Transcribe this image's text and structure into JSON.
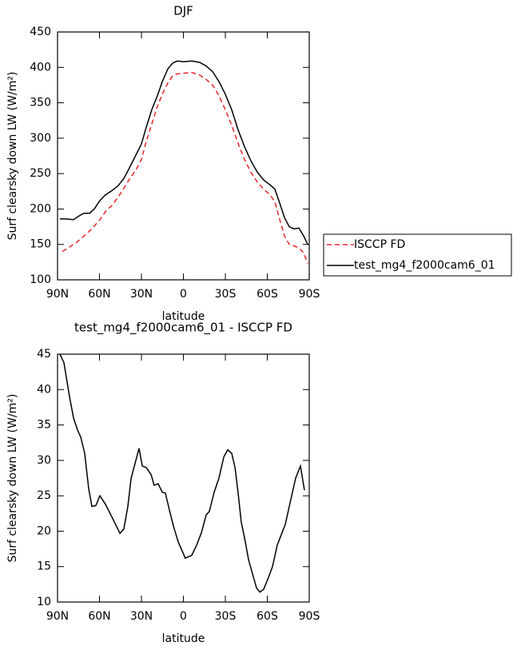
{
  "chart_data": [
    {
      "type": "line",
      "title": "DJF",
      "ylabel": "Surf clearsky down LW (W/m²)",
      "xlabel": "latitude",
      "xlim": [
        90,
        -90
      ],
      "xticks": [
        {
          "value": 90,
          "label": "90N"
        },
        {
          "value": 60,
          "label": "60N"
        },
        {
          "value": 30,
          "label": "30N"
        },
        0,
        {
          "value": -30,
          "label": "30S"
        },
        {
          "value": -60,
          "label": "60S"
        },
        {
          "value": -90,
          "label": "90S"
        }
      ],
      "ylim": [
        100,
        450
      ],
      "yticks": [
        100,
        150,
        200,
        250,
        300,
        350,
        400,
        450
      ],
      "legend": "right",
      "series": [
        {
          "name": "ISCCP FD",
          "color": "#e8262a",
          "linestyle": "dashed",
          "x": [
            86.6,
            82.6,
            76.9,
            71.1,
            65.4,
            59.7,
            55.1,
            51.1,
            46.6,
            42.6,
            38.6,
            34,
            30,
            26.6,
            22.6,
            18.6,
            15.1,
            11.1,
            7.7,
            4.3,
            -1.4,
            -6,
            -11.7,
            -16.3,
            -20.9,
            -25.4,
            -30,
            -34.6,
            -39.1,
            -43.7,
            -48.3,
            -52.9,
            -57.4,
            -62,
            -65.4,
            -68.9,
            -72.3,
            -75.7,
            -79.1,
            -82.6,
            -86,
            -88.9
          ],
          "values": [
            140,
            145,
            152,
            162,
            172,
            185,
            198,
            205,
            217,
            229,
            242,
            255,
            270,
            295,
            320,
            345,
            362,
            378,
            388,
            391,
            392,
            393,
            389,
            383,
            375,
            360,
            340,
            318,
            293,
            270,
            252,
            238,
            228,
            220,
            210,
            185,
            162,
            150,
            148,
            145,
            138,
            123
          ]
        },
        {
          "name": "test_mg4_f2000cam6_01",
          "color": "#000000",
          "linestyle": "solid",
          "x": [
            88.3,
            84.3,
            78.6,
            74,
            71.1,
            67.1,
            63.7,
            59.7,
            55.7,
            51.1,
            46.6,
            42.6,
            38.6,
            34,
            30,
            26.6,
            22.6,
            18.6,
            15.1,
            11.1,
            7.7,
            4.3,
            0,
            -6,
            -11.7,
            -16.3,
            -20.9,
            -25.4,
            -30,
            -34.6,
            -39.1,
            -43.7,
            -48.3,
            -52.9,
            -57.4,
            -62,
            -65.4,
            -68.9,
            -72.3,
            -75.7,
            -79.1,
            -82.6,
            -86,
            -88.9
          ],
          "values": [
            186,
            186,
            185,
            191,
            194,
            194,
            200,
            212,
            220,
            226,
            233,
            243,
            258,
            276,
            292,
            315,
            340,
            360,
            380,
            398,
            406,
            409,
            408,
            409,
            407,
            402,
            394,
            380,
            362,
            340,
            312,
            288,
            268,
            252,
            241,
            234,
            228,
            208,
            188,
            175,
            172,
            173,
            162,
            150
          ]
        }
      ]
    },
    {
      "type": "line",
      "title": "test_mg4_f2000cam6_01 - ISCCP FD",
      "ylabel": "Surf clearsky down LW (W/m²)",
      "xlabel": "latitude",
      "xlim": [
        90,
        -90
      ],
      "xticks": [
        {
          "value": 90,
          "label": "90N"
        },
        {
          "value": 60,
          "label": "60N"
        },
        {
          "value": 30,
          "label": "30N"
        },
        0,
        {
          "value": -30,
          "label": "30S"
        },
        {
          "value": -60,
          "label": "60S"
        },
        {
          "value": -90,
          "label": "90S"
        }
      ],
      "ylim": [
        10,
        45
      ],
      "yticks": [
        10,
        15,
        20,
        25,
        30,
        35,
        40,
        45
      ],
      "series": [
        {
          "color": "#000000",
          "linestyle": "solid",
          "x": [
            88.3,
            85.4,
            81.4,
            78.6,
            75.7,
            73.4,
            70.6,
            67.7,
            65.4,
            62.6,
            59.7,
            55.7,
            51.1,
            45.4,
            42.6,
            39.7,
            37.4,
            34,
            31.7,
            29.4,
            26.6,
            23.1,
            20.9,
            18,
            15.1,
            12.9,
            10,
            7.1,
            3.7,
            -1.4,
            -6,
            -9.4,
            -12.9,
            -16.3,
            -18.6,
            -22,
            -25.4,
            -28.9,
            -31.7,
            -34.6,
            -36.9,
            -39.1,
            -41.4,
            -44.3,
            -46.6,
            -49.4,
            -52.3,
            -54.6,
            -57.4,
            -60.9,
            -63.7,
            -67.1,
            -70.6,
            -72.9,
            -76.3,
            -80.3,
            -83.7,
            -86.6
          ],
          "values": [
            45,
            43.8,
            39,
            36,
            34.3,
            33.3,
            31,
            26,
            23.5,
            23.6,
            25,
            23.8,
            22,
            19.7,
            20.3,
            23.5,
            27.5,
            30,
            31.7,
            29.2,
            29,
            28,
            26.5,
            26.7,
            25.5,
            25.4,
            23,
            20.7,
            18.5,
            16.2,
            16.6,
            18,
            19.8,
            22.3,
            22.8,
            25.5,
            27.5,
            30.5,
            31.5,
            31,
            29,
            25.5,
            21.3,
            18.5,
            16,
            14,
            12,
            11.4,
            11.8,
            13.5,
            15,
            18,
            19.8,
            21,
            24,
            27.5,
            29.2,
            25.8
          ]
        }
      ]
    }
  ]
}
